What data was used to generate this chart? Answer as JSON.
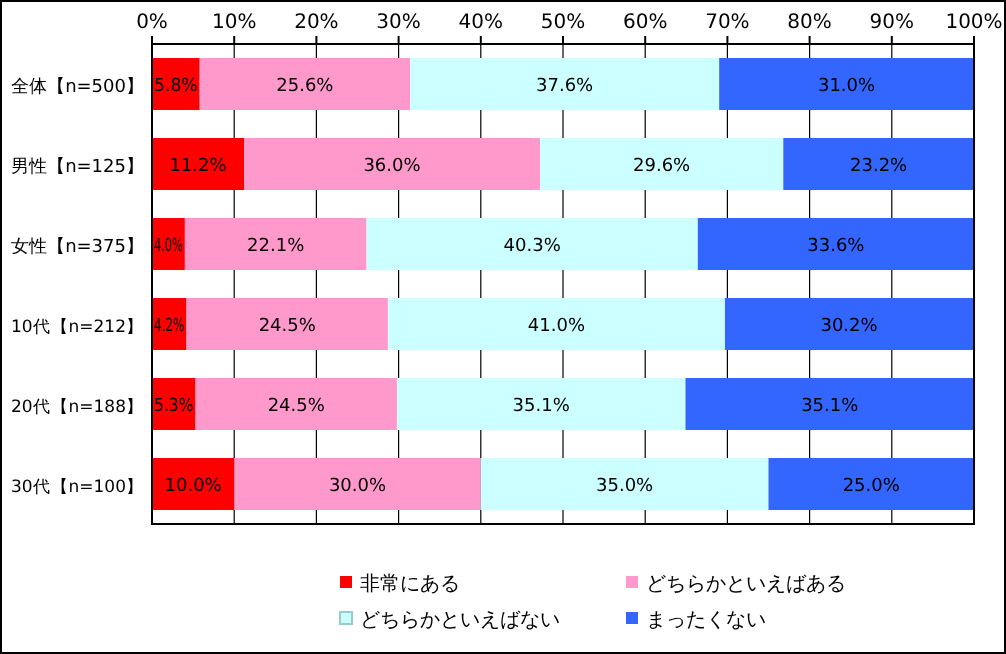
{
  "chart_data": {
    "type": "bar",
    "orientation": "horizontal",
    "stacked": true,
    "categories": [
      "全体【n=500】",
      "男性【n=125】",
      "女性【n=375】",
      "10代【n=212】",
      "20代【n=188】",
      "30代【n=100】"
    ],
    "series": [
      {
        "name": "非常にある",
        "color": "#ff0000",
        "values": [
          5.8,
          11.2,
          4.0,
          4.2,
          5.3,
          10.0
        ],
        "value_labels": [
          "5.8%",
          "11.2%",
          "4.0%",
          "4.2%",
          "5.3%",
          "10.0%"
        ]
      },
      {
        "name": "どちらかといえばある",
        "color": "#ff99cc",
        "values": [
          25.6,
          36.0,
          22.1,
          24.5,
          24.5,
          30.0
        ],
        "value_labels": [
          "25.6%",
          "36.0%",
          "22.1%",
          "24.5%",
          "24.5%",
          "30.0%"
        ]
      },
      {
        "name": "どちらかといえばない",
        "color": "#ccffff",
        "values": [
          37.6,
          29.6,
          40.3,
          41.0,
          35.1,
          35.0
        ],
        "value_labels": [
          "37.6%",
          "29.6%",
          "40.3%",
          "41.0%",
          "35.1%",
          "35.0%"
        ]
      },
      {
        "name": "まったくない",
        "color": "#3366ff",
        "values": [
          31.0,
          23.2,
          33.6,
          30.2,
          35.1,
          25.0
        ],
        "value_labels": [
          "31.0%",
          "23.2%",
          "33.6%",
          "30.2%",
          "35.1%",
          "25.0%"
        ]
      }
    ],
    "xlim": [
      0,
      100
    ],
    "xticks": [
      {
        "value": 0,
        "label": "0%"
      },
      {
        "value": 10,
        "label": "10%"
      },
      {
        "value": 20,
        "label": "20%"
      },
      {
        "value": 30,
        "label": "30%"
      },
      {
        "value": 40,
        "label": "40%"
      },
      {
        "value": 50,
        "label": "50%"
      },
      {
        "value": 60,
        "label": "60%"
      },
      {
        "value": 70,
        "label": "70%"
      },
      {
        "value": 80,
        "label": "80%"
      },
      {
        "value": 90,
        "label": "90%"
      },
      {
        "value": 100,
        "label": "100%"
      }
    ],
    "grid": "x",
    "legend": "bottom"
  }
}
